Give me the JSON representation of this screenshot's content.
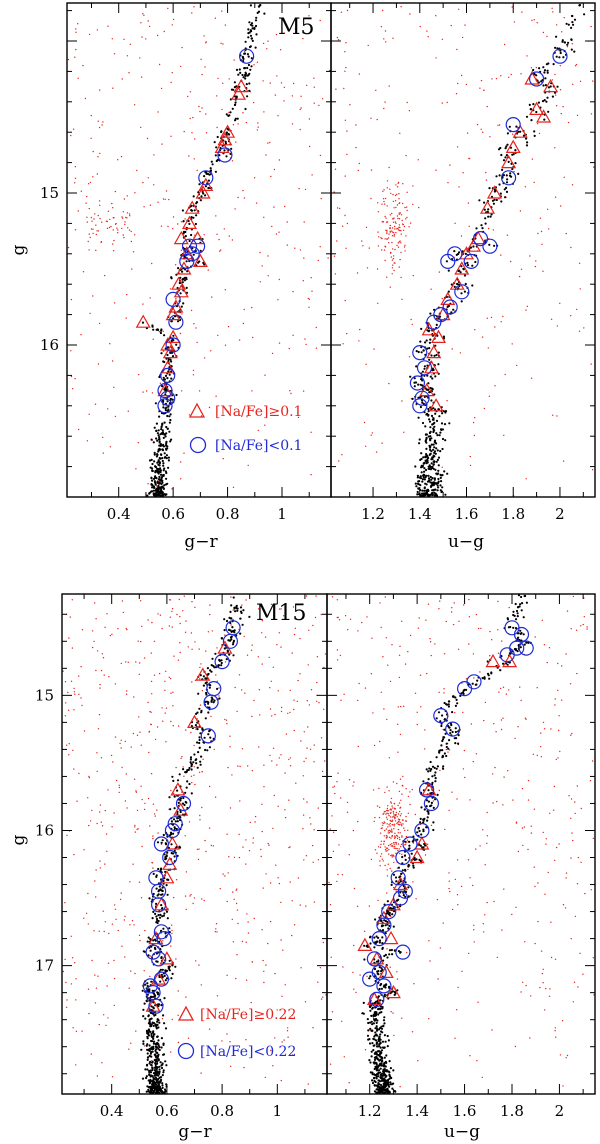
{
  "colors": {
    "na_rich": "#e8231d",
    "na_poor": "#1f2bd6",
    "field": "#e8231d",
    "member": "#000000"
  },
  "chart_data": [
    {
      "type": "scatter",
      "cluster": "M5",
      "ylabel": "g",
      "ylim": [
        17.0,
        13.75
      ],
      "yticks": [
        15,
        16
      ],
      "legend": {
        "placement": "bottom-left of left panel",
        "rich_label": "[Na/Fe]≥0.1",
        "poor_label": "[Na/Fe]<0.1"
      },
      "panels": [
        {
          "xlabel": "g−r",
          "xlim": [
            0.21,
            1.18
          ],
          "xticks": [
            0.4,
            0.6,
            0.8,
            1.0
          ],
          "xticklabels": [
            "0.4",
            "0.6",
            "0.8",
            "1"
          ],
          "na_rich": [
            [
              0.85,
              14.3
            ],
            [
              0.84,
              14.35
            ],
            [
              0.8,
              14.6
            ],
            [
              0.78,
              14.7
            ],
            [
              0.79,
              14.65
            ],
            [
              0.72,
              14.95
            ],
            [
              0.71,
              15.0
            ],
            [
              0.67,
              15.1
            ],
            [
              0.66,
              15.2
            ],
            [
              0.69,
              15.3
            ],
            [
              0.63,
              15.3
            ],
            [
              0.65,
              15.4
            ],
            [
              0.7,
              15.45
            ],
            [
              0.64,
              15.5
            ],
            [
              0.62,
              15.6
            ],
            [
              0.63,
              15.65
            ],
            [
              0.61,
              15.75
            ],
            [
              0.6,
              15.8
            ],
            [
              0.49,
              15.85
            ],
            [
              0.6,
              15.95
            ],
            [
              0.58,
              16.0
            ],
            [
              0.59,
              16.05
            ],
            [
              0.58,
              16.15
            ],
            [
              0.57,
              16.3
            ]
          ],
          "na_poor": [
            [
              0.87,
              14.1
            ],
            [
              0.79,
              14.75
            ],
            [
              0.72,
              14.9
            ],
            [
              0.66,
              15.35
            ],
            [
              0.69,
              15.35
            ],
            [
              0.67,
              15.4
            ],
            [
              0.65,
              15.45
            ],
            [
              0.6,
              15.7
            ],
            [
              0.61,
              15.85
            ],
            [
              0.6,
              16.0
            ],
            [
              0.58,
              16.2
            ],
            [
              0.57,
              16.3
            ],
            [
              0.58,
              16.35
            ],
            [
              0.57,
              16.4
            ]
          ],
          "members": [
            0.545,
            0.04
          ],
          "field": "scattered"
        },
        {
          "xlabel": "u−g",
          "xlim": [
            1.02,
            2.15
          ],
          "xticks": [
            1.2,
            1.4,
            1.6,
            1.8,
            2.0
          ],
          "xticklabels": [
            "1.2",
            "1.4",
            "1.6",
            "1.8",
            "2"
          ],
          "na_rich": [
            [
              1.88,
              14.25
            ],
            [
              1.96,
              14.3
            ],
            [
              1.9,
              14.45
            ],
            [
              1.93,
              14.5
            ],
            [
              1.83,
              14.6
            ],
            [
              1.8,
              14.7
            ],
            [
              1.78,
              14.8
            ],
            [
              1.72,
              15.0
            ],
            [
              1.69,
              15.1
            ],
            [
              1.65,
              15.3
            ],
            [
              1.63,
              15.35
            ],
            [
              1.6,
              15.4
            ],
            [
              1.58,
              15.5
            ],
            [
              1.56,
              15.6
            ],
            [
              1.52,
              15.7
            ],
            [
              1.5,
              15.8
            ],
            [
              1.44,
              15.9
            ],
            [
              1.48,
              15.95
            ],
            [
              1.46,
              16.05
            ],
            [
              1.45,
              16.15
            ],
            [
              1.43,
              16.3
            ],
            [
              1.47,
              16.4
            ]
          ],
          "na_poor": [
            [
              2.0,
              14.1
            ],
            [
              1.9,
              14.25
            ],
            [
              1.8,
              14.55
            ],
            [
              1.78,
              14.9
            ],
            [
              1.66,
              15.3
            ],
            [
              1.7,
              15.35
            ],
            [
              1.62,
              15.45
            ],
            [
              1.55,
              15.4
            ],
            [
              1.52,
              15.45
            ],
            [
              1.58,
              15.65
            ],
            [
              1.53,
              15.75
            ],
            [
              1.49,
              15.8
            ],
            [
              1.46,
              15.85
            ],
            [
              1.4,
              16.05
            ],
            [
              1.42,
              16.15
            ],
            [
              1.39,
              16.25
            ],
            [
              1.41,
              16.35
            ],
            [
              1.4,
              16.4
            ]
          ],
          "members": [
            1.44,
            0.07
          ],
          "field": "clump near u-g 1.3, g 15.2"
        }
      ]
    },
    {
      "type": "scatter",
      "cluster": "M15",
      "ylabel": "g",
      "ylim": [
        17.95,
        14.25
      ],
      "yticks": [
        15,
        16,
        17
      ],
      "legend": {
        "placement": "bottom-left of left panel",
        "rich_label": "[Na/Fe]≥0.22",
        "poor_label": "[Na/Fe]<0.22"
      },
      "panels": [
        {
          "xlabel": "g−r",
          "xlim": [
            0.22,
            1.18
          ],
          "xticks": [
            0.4,
            0.6,
            0.8,
            1.0
          ],
          "xticklabels": [
            "0.4",
            "0.6",
            "0.8",
            "1"
          ],
          "na_rich": [
            [
              0.73,
              14.85
            ],
            [
              0.81,
              14.65
            ],
            [
              0.7,
              15.2
            ],
            [
              0.64,
              15.7
            ],
            [
              0.65,
              15.85
            ],
            [
              0.62,
              16.1
            ],
            [
              0.61,
              16.25
            ],
            [
              0.6,
              16.35
            ],
            [
              0.58,
              16.55
            ],
            [
              0.56,
              16.8
            ],
            [
              0.6,
              16.95
            ],
            [
              0.57,
              17.1
            ],
            [
              0.55,
              17.3
            ]
          ],
          "na_poor": [
            [
              0.84,
              14.5
            ],
            [
              0.83,
              14.6
            ],
            [
              0.8,
              14.75
            ],
            [
              0.77,
              14.95
            ],
            [
              0.76,
              15.05
            ],
            [
              0.75,
              15.3
            ],
            [
              0.66,
              15.8
            ],
            [
              0.63,
              15.95
            ],
            [
              0.62,
              16.0
            ],
            [
              0.58,
              16.1
            ],
            [
              0.61,
              16.2
            ],
            [
              0.56,
              16.35
            ],
            [
              0.57,
              16.45
            ],
            [
              0.57,
              16.55
            ],
            [
              0.58,
              16.75
            ],
            [
              0.59,
              16.8
            ],
            [
              0.55,
              16.9
            ],
            [
              0.57,
              16.95
            ],
            [
              0.58,
              17.1
            ],
            [
              0.54,
              17.15
            ],
            [
              0.55,
              17.2
            ],
            [
              0.56,
              17.3
            ]
          ],
          "members": [
            0.56,
            0.045
          ],
          "field": "scattered"
        },
        {
          "xlabel": "u−g",
          "xlim": [
            1.02,
            2.15
          ],
          "xticks": [
            1.2,
            1.4,
            1.6,
            1.8,
            2.0
          ],
          "xticklabels": [
            "1.2",
            "1.4",
            "1.6",
            "1.8",
            "2"
          ],
          "na_rich": [
            [
              1.79,
              14.75
            ],
            [
              1.72,
              14.75
            ],
            [
              1.45,
              15.7
            ],
            [
              1.42,
              16.1
            ],
            [
              1.4,
              16.2
            ],
            [
              1.33,
              16.4
            ],
            [
              1.3,
              16.55
            ],
            [
              1.26,
              16.65
            ],
            [
              1.29,
              16.8
            ],
            [
              1.18,
              16.85
            ],
            [
              1.23,
              16.95
            ],
            [
              1.27,
              17.05
            ],
            [
              1.3,
              17.2
            ],
            [
              1.22,
              17.25
            ]
          ],
          "na_poor": [
            [
              1.8,
              14.5
            ],
            [
              1.84,
              14.55
            ],
            [
              1.82,
              14.65
            ],
            [
              1.86,
              14.65
            ],
            [
              1.78,
              14.7
            ],
            [
              1.64,
              14.9
            ],
            [
              1.6,
              14.95
            ],
            [
              1.5,
              15.15
            ],
            [
              1.55,
              15.25
            ],
            [
              1.44,
              15.7
            ],
            [
              1.46,
              15.8
            ],
            [
              1.42,
              16.0
            ],
            [
              1.37,
              16.1
            ],
            [
              1.34,
              16.2
            ],
            [
              1.32,
              16.35
            ],
            [
              1.35,
              16.45
            ],
            [
              1.33,
              16.5
            ],
            [
              1.28,
              16.6
            ],
            [
              1.26,
              16.7
            ],
            [
              1.24,
              16.8
            ],
            [
              1.34,
              16.9
            ],
            [
              1.22,
              16.95
            ],
            [
              1.24,
              17.05
            ],
            [
              1.2,
              17.1
            ],
            [
              1.26,
              17.15
            ],
            [
              1.23,
              17.25
            ]
          ],
          "members": [
            1.26,
            0.05
          ],
          "field": "clump near u-g 1.3, g 16.0"
        }
      ]
    }
  ]
}
